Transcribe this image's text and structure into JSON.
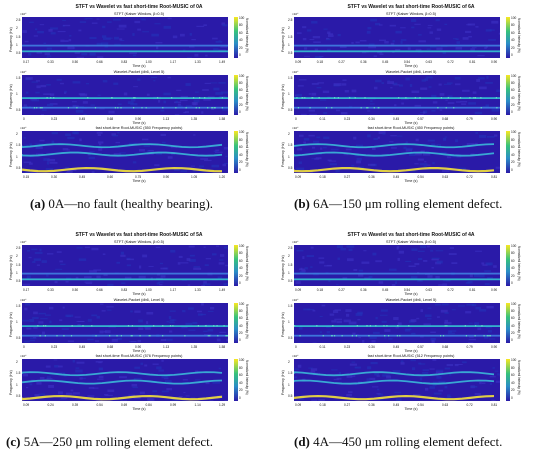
{
  "figure": {
    "captions": [
      {
        "letter": "(a)",
        "text": " 0A—no fault (healthy bearing)."
      },
      {
        "letter": "(b)",
        "text": " 6A—150 μm rolling element defect."
      },
      {
        "letter": "(c)",
        "text": " 5A—250 μm rolling element defect."
      },
      {
        "letter": "(d)",
        "text": " 4A—450 μm rolling element defect."
      }
    ]
  },
  "chart_data": [
    {
      "type": "heatmap",
      "title": "STFT vs Wavelet vs fast short-time Root-MUSIC of 0A",
      "subplots": [
        {
          "title": "STFT (Kaiser Window, β=0.5)",
          "ylabel": "Frequency (Hz)",
          "exponent": "×10⁴",
          "yticks": [
            "2.5",
            "2",
            "1.5",
            "1",
            "0.5"
          ],
          "xlabel": "Time (s)",
          "xticks": [
            "0.17",
            "0.33",
            "0.50",
            "0.66",
            "0.83",
            "1.00",
            "1.17",
            "1.33",
            "1.49"
          ],
          "colorbar": {
            "label": "Normalized Intensity (%)",
            "ticks": [
              "100",
              "80",
              "60",
              "40",
              "20",
              "0"
            ]
          }
        },
        {
          "title": "Wavelet-Packet (db6, Level 5)",
          "ylabel": "Frequency (Hz)",
          "exponent": "×10⁴",
          "yticks": [
            "1.5",
            "1",
            "0.5"
          ],
          "xlabel": "Time (s)",
          "xticks": [
            "0",
            "0.23",
            "0.45",
            "0.68",
            "0.90",
            "1.13",
            "1.35",
            "1.58"
          ],
          "colorbar": {
            "label": "Normalized Intensity (%)",
            "ticks": [
              "100",
              "80",
              "60",
              "40",
              "20",
              "0"
            ]
          }
        },
        {
          "title": "fast short-time Root-MUSIC (550 Frequency points)",
          "ylabel": "Frequency (Hz)",
          "exponent": "×10⁴",
          "yticks": [
            "2",
            "1.5",
            "1",
            "0.5"
          ],
          "xlabel": "Time (s)",
          "xticks": [
            "0.15",
            "0.30",
            "0.45",
            "0.60",
            "0.75",
            "0.90",
            "1.05",
            "1.20"
          ],
          "colorbar": {
            "label": "Normalized Intensity (%)",
            "ticks": [
              "100",
              "80",
              "60",
              "40",
              "20",
              "0"
            ]
          }
        }
      ]
    },
    {
      "type": "heatmap",
      "title": "STFT vs Wavelet vs fast short-time Root-MUSIC of 6A",
      "subplots": [
        {
          "title": "STFT (Kaiser Window, β=0.5)",
          "ylabel": "Frequency (Hz)",
          "exponent": "×10⁴",
          "yticks": [
            "2.5",
            "2",
            "1.5",
            "1",
            "0.5"
          ],
          "xlabel": "Time (s)",
          "xticks": [
            "0.09",
            "0.18",
            "0.27",
            "0.36",
            "0.45",
            "0.54",
            "0.63",
            "0.72",
            "0.81",
            "0.90"
          ],
          "colorbar": {
            "label": "Normalized Intensity (%)",
            "ticks": [
              "100",
              "80",
              "60",
              "40",
              "20",
              "0"
            ]
          }
        },
        {
          "title": "Wavelet-Packet (db6, Level 5)",
          "ylabel": "Frequency (Hz)",
          "exponent": "×10⁴",
          "yticks": [
            "1.5",
            "1",
            "0.5"
          ],
          "xlabel": "Time (s)",
          "xticks": [
            "0",
            "0.11",
            "0.23",
            "0.34",
            "0.45",
            "0.57",
            "0.68",
            "0.79",
            "0.90"
          ],
          "colorbar": {
            "label": "Normalized Intensity (%)",
            "ticks": [
              "100",
              "80",
              "60",
              "40",
              "20",
              "0"
            ]
          }
        },
        {
          "title": "fast short-time Root-MUSIC (450 Frequency points)",
          "ylabel": "Frequency (Hz)",
          "exponent": "×10⁴",
          "yticks": [
            "2",
            "1.5",
            "1",
            "0.5"
          ],
          "xlabel": "Time (s)",
          "xticks": [
            "0.09",
            "0.18",
            "0.27",
            "0.36",
            "0.45",
            "0.54",
            "0.63",
            "0.72",
            "0.81"
          ],
          "colorbar": {
            "label": "Normalized Intensity (%)",
            "ticks": [
              "100",
              "80",
              "60",
              "40",
              "20",
              "0"
            ]
          }
        }
      ]
    },
    {
      "type": "heatmap",
      "title": "STFT vs Wavelet vs fast short-time Root-MUSIC of 5A",
      "subplots": [
        {
          "title": "STFT (Kaiser Window, β=0.5)",
          "ylabel": "Frequency (Hz)",
          "exponent": "×10⁴",
          "yticks": [
            "2.5",
            "2",
            "1.5",
            "1",
            "0.5"
          ],
          "xlabel": "Time (s)",
          "xticks": [
            "0.17",
            "0.33",
            "0.50",
            "0.66",
            "0.83",
            "1.00",
            "1.17",
            "1.33",
            "1.49"
          ],
          "colorbar": {
            "label": "Normalized Intensity (%)",
            "ticks": [
              "100",
              "80",
              "60",
              "40",
              "20",
              "0"
            ]
          }
        },
        {
          "title": "Wavelet-Packet (db6, Level 5)",
          "ylabel": "Frequency (Hz)",
          "exponent": "×10⁴",
          "yticks": [
            "1.5",
            "1",
            "0.5"
          ],
          "xlabel": "Time (s)",
          "xticks": [
            "0",
            "0.23",
            "0.45",
            "0.68",
            "0.90",
            "1.13",
            "1.35",
            "1.58"
          ],
          "colorbar": {
            "label": "Normalized Intensity (%)",
            "ticks": [
              "100",
              "80",
              "60",
              "40",
              "20",
              "0"
            ]
          }
        },
        {
          "title": "fast short-time Root-MUSIC (576 Frequency points)",
          "ylabel": "Frequency (Hz)",
          "exponent": "×10⁴",
          "yticks": [
            "2",
            "1.5",
            "1",
            "0.5"
          ],
          "xlabel": "Time (s)",
          "xticks": [
            "0.09",
            "0.24",
            "0.39",
            "0.54",
            "0.69",
            "0.84",
            "0.99",
            "1.14",
            "1.29"
          ],
          "colorbar": {
            "label": "Normalized Intensity (%)",
            "ticks": [
              "100",
              "80",
              "60",
              "40",
              "20",
              "0"
            ]
          }
        }
      ]
    },
    {
      "type": "heatmap",
      "title": "STFT vs Wavelet vs fast short-time Root-MUSIC of 4A",
      "subplots": [
        {
          "title": "STFT (Kaiser Window, β=0.5)",
          "ylabel": "Frequency (Hz)",
          "exponent": "×10⁴",
          "yticks": [
            "2.5",
            "2",
            "1.5",
            "1",
            "0.5"
          ],
          "xlabel": "Time (s)",
          "xticks": [
            "0.09",
            "0.18",
            "0.27",
            "0.36",
            "0.45",
            "0.54",
            "0.63",
            "0.72",
            "0.81",
            "0.90"
          ],
          "colorbar": {
            "label": "Normalized Intensity (%)",
            "ticks": [
              "100",
              "80",
              "60",
              "40",
              "20",
              "0"
            ]
          }
        },
        {
          "title": "Wavelet-Packet (db6, Level 5)",
          "ylabel": "Frequency (Hz)",
          "exponent": "×10⁴",
          "yticks": [
            "1.5",
            "1",
            "0.5"
          ],
          "xlabel": "Time (s)",
          "xticks": [
            "0",
            "0.11",
            "0.23",
            "0.34",
            "0.45",
            "0.57",
            "0.68",
            "0.79",
            "0.90"
          ],
          "colorbar": {
            "label": "Normalized Intensity (%)",
            "ticks": [
              "100",
              "80",
              "60",
              "40",
              "20",
              "0"
            ]
          }
        },
        {
          "title": "fast short-time Root-MUSIC (512 Frequency points)",
          "ylabel": "Frequency (Hz)",
          "exponent": "×10⁴",
          "yticks": [
            "2",
            "1.5",
            "1",
            "0.5"
          ],
          "xlabel": "Time (s)",
          "xticks": [
            "0.09",
            "0.18",
            "0.27",
            "0.36",
            "0.45",
            "0.54",
            "0.63",
            "0.72",
            "0.81"
          ],
          "colorbar": {
            "label": "Normalized Intensity (%)",
            "ticks": [
              "100",
              "80",
              "60",
              "40",
              "20",
              "0"
            ]
          }
        }
      ]
    }
  ]
}
